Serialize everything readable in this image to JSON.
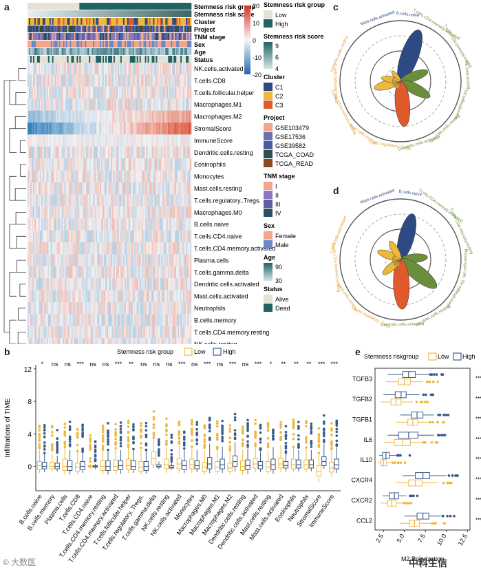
{
  "panels": {
    "a": "a",
    "b": "b",
    "c": "c",
    "d": "d",
    "e": "e"
  },
  "panel_a": {
    "annotation_rows": [
      "Stemness risk group",
      "Stemness risk score",
      "Cluster",
      "Project",
      "TNM stage",
      "Sex",
      "Age",
      "Status"
    ],
    "heatmap_rows": [
      "NK.cells.activated",
      "T.cells.CD8",
      "T.cells.follicular.helper",
      "Macrophages.M1",
      "Macrophages.M2",
      "StromalScore",
      "ImmuneScore",
      "Dendritic.cells.resting",
      "Eosinophils",
      "Monocytes",
      "Mast.cells.resting",
      "T.cells.regulatory..Tregs.",
      "Macrophages.M0",
      "B.cells.naive",
      "T.cells.CD4.naive",
      "T.cells.CD4.memory.activated",
      "Plasma.cells",
      "T.cells.gamma.delta",
      "Dendritic.cells.activated",
      "Mast.cells.activated",
      "Neutrophils",
      "B.cells.memory",
      "T.cells.CD4.memory.resting",
      "NK.cells.resting"
    ],
    "colorbar_ticks": [
      "20",
      "10",
      "0",
      "-10",
      "-20"
    ],
    "legend": {
      "risk_group": {
        "title": "Stemness risk group",
        "items": [
          {
            "label": "Low",
            "color": "#e6e1d6"
          },
          {
            "label": "High",
            "color": "#1f6363"
          }
        ]
      },
      "risk_score": {
        "title": "Stemness risk score",
        "ticks": [
          "9",
          "6",
          "4"
        ]
      },
      "cluster": {
        "title": "Cluster",
        "items": [
          {
            "label": "C1",
            "color": "#2e4a85"
          },
          {
            "label": "C2",
            "color": "#f0b83a"
          },
          {
            "label": "C3",
            "color": "#e05a2b"
          }
        ]
      },
      "project": {
        "title": "Project",
        "items": [
          {
            "label": "GSE103479",
            "color": "#f4a58a"
          },
          {
            "label": "GSE17536",
            "color": "#6f6fb0"
          },
          {
            "label": "GSE39582",
            "color": "#4d5aa0"
          },
          {
            "label": "TCGA_COAD",
            "color": "#2f4f4f"
          },
          {
            "label": "TCGA_READ",
            "color": "#8b4a1f"
          }
        ]
      },
      "tnm": {
        "title": "TNM stage",
        "items": [
          {
            "label": "I",
            "color": "#f4a58a"
          },
          {
            "label": "II",
            "color": "#8c78c0"
          },
          {
            "label": "III",
            "color": "#5a5fa8"
          },
          {
            "label": "IV",
            "color": "#2a4d68"
          }
        ]
      },
      "sex": {
        "title": "Sex",
        "items": [
          {
            "label": "Female",
            "color": "#f4a58a"
          },
          {
            "label": "Male",
            "color": "#6a88c8"
          }
        ]
      },
      "age": {
        "title": "Age",
        "ticks": [
          "90",
          "30"
        ]
      },
      "status": {
        "title": "Status",
        "items": [
          {
            "label": "Alive",
            "color": "#e6e1d6"
          },
          {
            "label": "Dead",
            "color": "#1f6363"
          }
        ]
      }
    }
  },
  "chart_data": [
    {
      "panel": "b",
      "type": "box",
      "legend_title": "Stemness risk group",
      "legend": [
        {
          "name": "Low",
          "color": "#f0b83a"
        },
        {
          "name": "High",
          "color": "#3a5a8c"
        }
      ],
      "ylabel": "Infiltrations of TIME",
      "ylim": [
        -3,
        12.5
      ],
      "yticks": [
        0,
        4,
        8,
        12
      ],
      "categories": [
        "B.cells.naive",
        "B.cells.memory",
        "Plasma.cells",
        "T.cells.CD8",
        "T.cells.CD4.naive",
        "T.cells.CD4.memory.resting",
        "T.cells.CD4.memory.activated",
        "T.cells.follicular.helper",
        "T.cells.regulatory..Tregs.",
        "T.cells.gamma.delta",
        "NK.cells.resting",
        "NK.cells.activated",
        "Monocytes",
        "Macrophages.M0",
        "Macrophages.M1",
        "Macrophages.M2",
        "Dendritic.cells.resting",
        "Dendritic.cells.activated",
        "Mast.cells.resting",
        "Mast.cells.activated",
        "Eosinophils",
        "Neutrophils",
        "StromalScore",
        "ImmuneScore"
      ],
      "significance": [
        "*",
        "ns",
        "ns",
        "***",
        "ns",
        "ns",
        "***",
        "**",
        "ns",
        "ns",
        "ns",
        "***",
        "ns",
        "***",
        "ns",
        "***",
        "ns",
        "***",
        "*",
        "**",
        "**",
        "**",
        "***",
        "***"
      ],
      "series": [
        {
          "name": "Low",
          "stats": [
            [
              -0.8,
              -0.4,
              0.1,
              0.6,
              2
            ],
            [
              -0.6,
              -0.3,
              0.0,
              0.5,
              1.5
            ],
            [
              -1,
              -0.5,
              0.0,
              0.9,
              2.2
            ],
            [
              -1,
              -0.6,
              -0.1,
              0.4,
              1.8
            ],
            [
              -0.3,
              -0.1,
              0,
              0.1,
              0.3
            ],
            [
              -1,
              -0.5,
              0.0,
              0.7,
              2
            ],
            [
              -1,
              -0.5,
              0.0,
              0.8,
              2.2
            ],
            [
              -0.8,
              -0.4,
              0.1,
              0.9,
              2.4
            ],
            [
              -1,
              -0.6,
              -0.1,
              0.6,
              2
            ],
            [
              -0.2,
              0.2,
              1.0,
              1.8,
              3.5
            ],
            [
              -0.8,
              -0.3,
              0.2,
              0.9,
              2.4
            ],
            [
              -0.8,
              -0.3,
              0.3,
              1.0,
              2.6
            ],
            [
              -0.8,
              -0.3,
              0.2,
              0.9,
              2.4
            ],
            [
              -1,
              -0.6,
              -0.1,
              0.5,
              1.9
            ],
            [
              -1,
              -0.6,
              -0.1,
              0.6,
              2.1
            ],
            [
              -1,
              -0.6,
              -0.2,
              0.4,
              1.7
            ],
            [
              -1,
              -0.5,
              0.0,
              0.7,
              2
            ],
            [
              -0.7,
              -0.2,
              0.3,
              1.0,
              2.5
            ],
            [
              -1,
              -0.6,
              -0.1,
              0.6,
              2
            ],
            [
              -0.7,
              -0.2,
              0.3,
              1.0,
              2.6
            ],
            [
              -0.7,
              -0.3,
              0.2,
              0.9,
              2.3
            ],
            [
              -0.7,
              -0.3,
              0.2,
              0.8,
              2.2
            ],
            [
              -2,
              -1.2,
              -0.6,
              0.1,
              1.6
            ],
            [
              -1.3,
              -0.7,
              -0.2,
              0.5,
              2
            ]
          ]
        },
        {
          "name": "High",
          "stats": [
            [
              -0.7,
              -0.3,
              0.0,
              0.5,
              1.6
            ],
            [
              -0.6,
              -0.3,
              0.0,
              0.4,
              1.3
            ],
            [
              -1,
              -0.5,
              0.0,
              0.7,
              2
            ],
            [
              -0.8,
              -0.4,
              0.0,
              0.6,
              1.8
            ],
            [
              -0.3,
              -0.1,
              0,
              0.1,
              0.3
            ],
            [
              -1,
              -0.5,
              0.0,
              0.7,
              2
            ],
            [
              -0.9,
              -0.4,
              0.1,
              0.7,
              2
            ],
            [
              -0.8,
              -0.4,
              0.0,
              0.7,
              2
            ],
            [
              -0.9,
              -0.5,
              0.0,
              0.6,
              1.9
            ],
            [
              -0.3,
              -0.1,
              0.0,
              0.2,
              0.6
            ],
            [
              -0.4,
              -0.2,
              -0.1,
              0.1,
              0.5
            ],
            [
              -0.8,
              -0.4,
              0.1,
              0.7,
              2
            ],
            [
              -0.7,
              -0.3,
              0.1,
              0.7,
              2
            ],
            [
              -0.8,
              -0.3,
              0.3,
              1.1,
              2.8
            ],
            [
              -0.8,
              -0.3,
              0.2,
              0.9,
              2.4
            ],
            [
              -0.6,
              0.0,
              0.6,
              1.3,
              3
            ],
            [
              -0.9,
              -0.4,
              0.1,
              0.8,
              2.2
            ],
            [
              -0.7,
              -0.3,
              0.1,
              0.6,
              1.8
            ],
            [
              -0.9,
              -0.4,
              0.2,
              0.9,
              2.4
            ],
            [
              -0.6,
              -0.2,
              0.1,
              0.6,
              1.6
            ],
            [
              -0.6,
              -0.2,
              0.2,
              0.8,
              2
            ],
            [
              -0.6,
              -0.2,
              0.2,
              0.8,
              2
            ],
            [
              -0.3,
              0.1,
              0.6,
              1.2,
              2.8
            ],
            [
              -0.8,
              -0.3,
              0.2,
              0.9,
              2.4
            ]
          ]
        }
      ]
    },
    {
      "panel": "c",
      "type": "rose",
      "labels": [
        "Mast.cells.activated",
        "B.cells.naive",
        "T.cells.CD4.memory.activated",
        "T.cells.CD4.memory.resting",
        "NK.cells.resting",
        "Macrophages.M1",
        "Dendritic.cells.resting",
        "Dendritic.cells.activated",
        "T.cells.regulatory..Tregs.",
        "Mast.cells.resting",
        "T.cells.CD4.memory.resting",
        "T.cells.follicular.helper",
        "Dendritic.cells.resting"
      ],
      "petals": [
        {
          "angle": 20,
          "length": 0.9,
          "color": "#2e4a85"
        },
        {
          "angle": 70,
          "length": 0.48,
          "color": "#6b8e3a"
        },
        {
          "angle": 118,
          "length": 0.55,
          "color": "#6b8e3a"
        },
        {
          "angle": 175,
          "length": 0.75,
          "color": "#e05a2b"
        },
        {
          "angle": 255,
          "length": 0.45,
          "color": "#f0b83a"
        },
        {
          "angle": 280,
          "length": 0.32,
          "color": "#f0b83a"
        },
        {
          "angle": 320,
          "length": 0.22,
          "color": "#f0b83a"
        }
      ]
    },
    {
      "panel": "d",
      "type": "rose",
      "labels": [
        "Mast.cells.activated",
        "B.cells.naive",
        "T.cells.CD4.memory.activated",
        "T.cells.CD4.memory.resting",
        "NK.cells.resting",
        "Macrophages.M1",
        "Dendritic.cells.resting",
        "Dendritic.cells.activated",
        "T.cells.regulatory..Tregs.",
        "Mast.cells.resting",
        "T.cells.CD4.memory.resting",
        "T.cells.follicular.helper"
      ],
      "petals": [
        {
          "angle": 15,
          "length": 0.78,
          "color": "#2e4a85"
        },
        {
          "angle": 85,
          "length": 0.45,
          "color": "#6b8e3a"
        },
        {
          "angle": 128,
          "length": 0.75,
          "color": "#6b8e3a"
        },
        {
          "angle": 178,
          "length": 0.82,
          "color": "#e05a2b"
        },
        {
          "angle": 230,
          "length": 0.38,
          "color": "#f0b83a"
        },
        {
          "angle": 290,
          "length": 0.4,
          "color": "#f0b83a"
        },
        {
          "angle": 330,
          "length": 0.35,
          "color": "#f0b83a"
        }
      ]
    },
    {
      "panel": "e",
      "type": "box",
      "orientation": "horizontal",
      "legend_title": "Stemness riskgroup",
      "legend": [
        {
          "name": "Low",
          "color": "#f0b83a"
        },
        {
          "name": "High",
          "color": "#3a5a8c"
        }
      ],
      "xlabel": "M2 Polarization",
      "xlim": [
        1.5,
        12.8
      ],
      "xticks": [
        "2.5",
        "5.0",
        "7.5",
        "10.0",
        "12.5"
      ],
      "categories": [
        "TGFB3",
        "TGFB2",
        "TGFB1",
        "IL6",
        "IL10",
        "CXCR4",
        "CXCR2",
        "CCL2"
      ],
      "significance": [
        "***",
        "***",
        "***",
        "***",
        "***",
        "***",
        "***",
        "***"
      ],
      "series": [
        {
          "name": "High",
          "stats": [
            [
              3.0,
              4.8,
              5.5,
              6.3,
              8.0
            ],
            [
              2.5,
              3.9,
              4.6,
              5.2,
              6.8
            ],
            [
              4.5,
              5.8,
              6.5,
              7.2,
              8.5
            ],
            [
              3.0,
              4.3,
              5.5,
              6.6,
              8.5
            ],
            [
              2.0,
              2.4,
              2.8,
              3.2,
              4.0
            ],
            [
              4.8,
              6.3,
              7.2,
              8.0,
              10.0
            ],
            [
              2.4,
              3.2,
              3.8,
              4.3,
              5.2
            ],
            [
              5.0,
              6.5,
              7.2,
              7.9,
              9.4
            ]
          ]
        },
        {
          "name": "Low",
          "stats": [
            [
              2.8,
              4.3,
              5.0,
              5.7,
              7.2
            ],
            [
              2.2,
              3.4,
              4.0,
              4.6,
              6.0
            ],
            [
              4.0,
              5.4,
              6.0,
              6.6,
              8.0
            ],
            [
              2.6,
              3.8,
              4.8,
              5.7,
              7.2
            ],
            [
              1.9,
              2.2,
              2.5,
              2.9,
              3.5
            ],
            [
              4.0,
              5.5,
              6.3,
              7.1,
              9.0
            ],
            [
              2.2,
              3.0,
              3.5,
              4.0,
              4.8
            ],
            [
              4.5,
              5.6,
              6.2,
              6.8,
              8.3
            ]
          ]
        }
      ]
    }
  ],
  "watermark": {
    "left": "© 大数医",
    "right": "中科生信"
  }
}
